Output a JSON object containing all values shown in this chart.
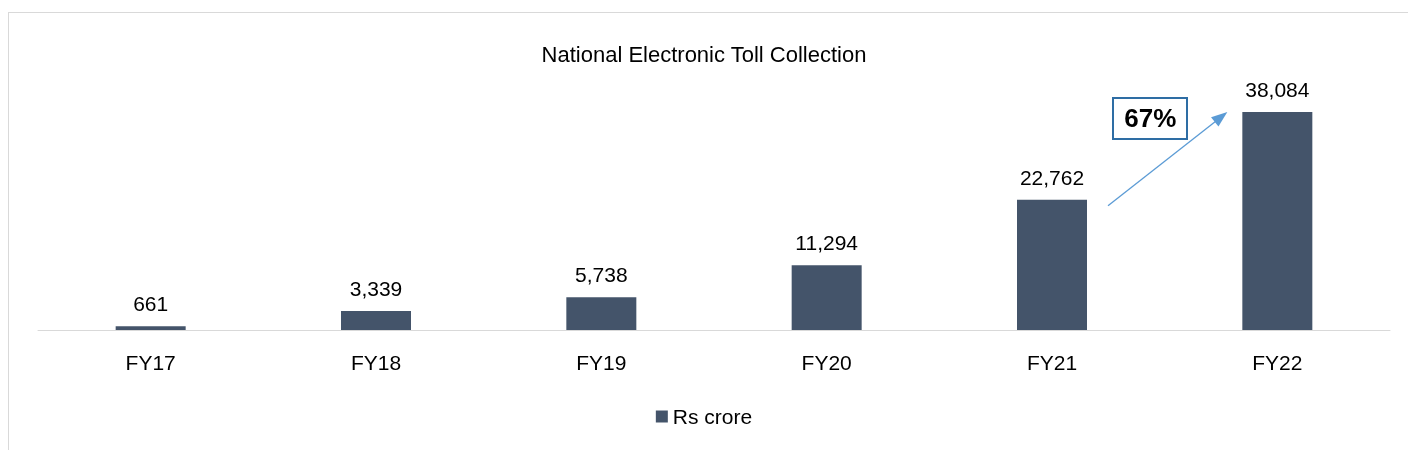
{
  "chart_data": {
    "type": "bar",
    "title": "National Electronic Toll Collection",
    "categories": [
      "FY17",
      "FY18",
      "FY19",
      "FY20",
      "FY21",
      "FY22"
    ],
    "series": [
      {
        "name": "Rs crore",
        "color": "#44546a",
        "values": [
          661,
          3339,
          5738,
          11294,
          22762,
          38084
        ],
        "value_labels": [
          "661",
          "3,339",
          "5,738",
          "11,294",
          "22,762",
          "38,084"
        ]
      }
    ],
    "legend": "bottom",
    "annotations": [
      "67%"
    ]
  }
}
